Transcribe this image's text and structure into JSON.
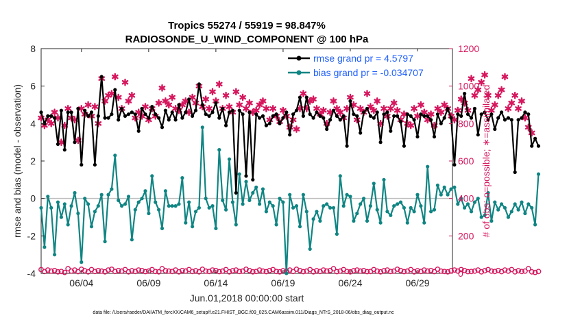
{
  "chart_data": {
    "type": "line",
    "title": "Tropics 55274 / 55919 = 98.847%",
    "subtitle": "RADIOSONDE_U_WIND_COMPONENT @ 100 hPa",
    "xlabel": "Jun.01,2018 00:00:00 start",
    "ylabel_left": "rmse and bias (model - observation)",
    "ylabel_right": "# of obs: o=possible; ∗=assimilated",
    "xlim": [
      0,
      30.6
    ],
    "ylim_left": [
      -4,
      8
    ],
    "ylim_right": [
      0,
      1200
    ],
    "x_ticks": [
      {
        "label": "06/04",
        "x": 3
      },
      {
        "label": "06/09",
        "x": 8
      },
      {
        "label": "06/14",
        "x": 13
      },
      {
        "label": "06/19",
        "x": 18
      },
      {
        "label": "06/24",
        "x": 23
      },
      {
        "label": "06/29",
        "x": 28
      }
    ],
    "yticks_left": [
      -4,
      -2,
      0,
      2,
      4,
      6,
      8
    ],
    "yticks_right": [
      0,
      200,
      400,
      600,
      800,
      1000,
      1200
    ],
    "colors": {
      "rmse": "#000000",
      "bias": "#0f8583",
      "obs": "#d6175e",
      "zero": "#bdbdbd"
    },
    "legend": {
      "position": "top-right",
      "entries": [
        "rmse grand pr = 4.5797",
        "bias grand pr = -0.034707"
      ]
    },
    "footer": "data file: /Users/raeder/DAI/ATM_forcXX/CAM6_setup/f.e21.FHIST_BGC.f09_025.CAM6assim.011/Diags_NTrS_2018-06/obs_diag_output.nc",
    "step": 0.25,
    "series": [
      {
        "name": "rmse",
        "axis": "left",
        "values": [
          4.6,
          4.0,
          4.4,
          4.4,
          4.3,
          2.9,
          4.7,
          2.6,
          4.6,
          4.6,
          3.0,
          4.8,
          1.8,
          4.7,
          4.4,
          4.6,
          1.8,
          4.4,
          6.5,
          4.3,
          4.3,
          4.5,
          5.8,
          4.2,
          4.8,
          4.4,
          4.5,
          4.6,
          4.5,
          3.6,
          4.8,
          4.5,
          4.3,
          4.9,
          4.5,
          4.3,
          3.8,
          4.7,
          4.2,
          4.6,
          4.2,
          5.0,
          4.3,
          4.6,
          5.3,
          4.4,
          4.7,
          6.1,
          5.0,
          4.5,
          4.4,
          4.6,
          5.1,
          4.3,
          4.8,
          3.9,
          4.6,
          4.7,
          0.3,
          4.7,
          4.5,
          1.2,
          4.6,
          1.0,
          4.5,
          4.3,
          4.4,
          3.9,
          4.0,
          4.4,
          4.5,
          4.0,
          4.3,
          4.6,
          3.4,
          4.5,
          4.7,
          5.4,
          4.4,
          5.4,
          4.5,
          4.3,
          4.6,
          4.4,
          4.3,
          3.7,
          4.2,
          4.7,
          4.4,
          4.2,
          4.4,
          2.8,
          5.2,
          4.5,
          4.4,
          3.5,
          4.6,
          4.8,
          4.4,
          4.3,
          4.6,
          3.0,
          4.5,
          4.6,
          3.6,
          4.4,
          4.4,
          4.1,
          2.8,
          4.5,
          4.4,
          4.2,
          3.3,
          4.5,
          4.4,
          4.4,
          4.2,
          3.3,
          4.5,
          4.0,
          4.3,
          4.8,
          4.3,
          1.8,
          4.5,
          4.4,
          5.6,
          4.5,
          4.3,
          4.8,
          3.4,
          4.5,
          4.6,
          4.2,
          4.5,
          3.7,
          4.3,
          4.6,
          4.2,
          4.3,
          4.2,
          1.4,
          4.2,
          4.3,
          4.6,
          4.5,
          2.8,
          3.2,
          2.8
        ]
      },
      {
        "name": "bias",
        "axis": "left",
        "values": [
          -0.5,
          -2.6,
          0.1,
          -0.5,
          -3.0,
          -0.2,
          -1.0,
          -0.3,
          -1.4,
          -0.4,
          0.3,
          -0.8,
          -3.4,
          0.0,
          -0.3,
          -1.5,
          -0.7,
          -0.4,
          0.2,
          -2.3,
          0.2,
          0.5,
          2.3,
          -0.1,
          -0.4,
          -0.3,
          0.1,
          -2.2,
          -0.6,
          -0.2,
          0.0,
          0.4,
          -0.8,
          1.2,
          -0.2,
          -0.6,
          -1.6,
          0.4,
          -0.4,
          -0.4,
          -0.4,
          -0.3,
          1.1,
          -1.3,
          -0.2,
          -1.5,
          -0.7,
          -0.5,
          3.8,
          0.0,
          -0.5,
          -0.4,
          -1.6,
          2.6,
          -0.1,
          -0.6,
          2.1,
          -0.2,
          -1.4,
          1.3,
          -0.3,
          0.9,
          -0.1,
          0.3,
          0.6,
          -0.3,
          0.5,
          -0.7,
          -0.2,
          -0.4,
          -1.4,
          0.0,
          -0.2,
          -4.0,
          0.2,
          -0.5,
          -0.4,
          -1.5,
          0.2,
          -0.7,
          -2.7,
          -1.1,
          -0.7,
          -1.2,
          -0.4,
          -0.3,
          -0.5,
          -0.5,
          -1.9,
          1.2,
          -0.4,
          0.2,
          0.1,
          -1.2,
          -0.8,
          -0.3,
          0.0,
          -1.2,
          -0.4,
          0.8,
          -0.6,
          -1.3,
          1.0,
          -0.7,
          -0.9,
          -0.4,
          -0.3,
          -0.2,
          -0.5,
          -1.3,
          -0.5,
          -0.7,
          0.2,
          -0.4,
          -1.3,
          1.7,
          -0.7,
          -0.6,
          0.7,
          0.2,
          0.6,
          0.2,
          0.5,
          0.6,
          -0.3,
          0.0,
          -0.5,
          -0.3,
          -0.7,
          -0.2,
          0.0,
          -1.0,
          -0.9,
          0.3,
          -1.2,
          -0.2,
          -0.6,
          -0.3,
          -0.5,
          -1.0,
          -0.7,
          -0.3,
          -0.6,
          -0.2,
          -0.8,
          -0.3,
          -0.5,
          -1.4,
          1.3
        ]
      },
      {
        "name": "obs_possible",
        "axis": "right",
        "marker": "o",
        "values": [
          20,
          10,
          18,
          12,
          15,
          8,
          10,
          5,
          25,
          12,
          18,
          9,
          22,
          14,
          8,
          20,
          10,
          15,
          12,
          8,
          18,
          22,
          10,
          15,
          12,
          20,
          8,
          14,
          10,
          18,
          15,
          9,
          12,
          20,
          10,
          8,
          25,
          14,
          12,
          10,
          18,
          8,
          15,
          12,
          20,
          10,
          14,
          8,
          22,
          12,
          10,
          18,
          15,
          9,
          12,
          20,
          8,
          14,
          18,
          10,
          12,
          22,
          15,
          8,
          10,
          18,
          12,
          9,
          15,
          20,
          10,
          8,
          14,
          12,
          18,
          10,
          22,
          15,
          9,
          12,
          20,
          8,
          14,
          10,
          18,
          12,
          15,
          25,
          9,
          12,
          20,
          10,
          8,
          14,
          18,
          12,
          15,
          9,
          10,
          20,
          12,
          8,
          14,
          18,
          10,
          12,
          22,
          15,
          9,
          12,
          20,
          8,
          14,
          10,
          18,
          12,
          15,
          9,
          22,
          12,
          10,
          8,
          14,
          18,
          12,
          20,
          15,
          9,
          10,
          12,
          18,
          8,
          14,
          20,
          12,
          10,
          15,
          9,
          18,
          12,
          20,
          8,
          14,
          10,
          12,
          25,
          8,
          5,
          10
        ]
      },
      {
        "name": "obs_assimilated",
        "axis": "right",
        "marker": "*",
        "values": [
          830,
          790,
          820,
          800,
          860,
          830,
          700,
          790,
          880,
          830,
          820,
          710,
          880,
          850,
          900,
          840,
          890,
          800,
          1040,
          920,
          950,
          960,
          1050,
          940,
          880,
          1020,
          920,
          950,
          830,
          860,
          840,
          890,
          820,
          880,
          840,
          910,
          990,
          920,
          900,
          940,
          880,
          870,
          900,
          920,
          860,
          940,
          910,
          1000,
          890,
          930,
          880,
          970,
          920,
          1010,
          880,
          950,
          890,
          860,
          970,
          900,
          940,
          880,
          910,
          860,
          870,
          900,
          920,
          880,
          820,
          880,
          840,
          810,
          870,
          840,
          780,
          820,
          770,
          880,
          960,
          880,
          920,
          930,
          880,
          850,
          870,
          800,
          860,
          920,
          880,
          860,
          830,
          880,
          940,
          900,
          820,
          880,
          860,
          960,
          890,
          870,
          920,
          800,
          880,
          840,
          880,
          910,
          870,
          820,
          850,
          800,
          790,
          880,
          840,
          900,
          860,
          820,
          850,
          790,
          880,
          860,
          900,
          880,
          840,
          820,
          870,
          930,
          910,
          870,
          1040,
          950,
          980,
          1020,
          1060,
          950,
          870,
          900,
          950,
          980,
          1050,
          880,
          910,
          950,
          880,
          920,
          830,
          780,
          750
        ]
      }
    ]
  }
}
